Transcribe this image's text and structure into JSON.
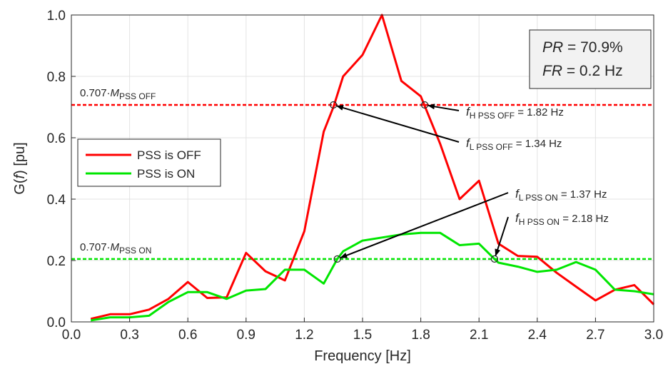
{
  "chart_data": {
    "type": "line",
    "xlabel": "Frequency [Hz]",
    "ylabel": "G(f) [pu]",
    "xlim": [
      0.0,
      3.0
    ],
    "ylim": [
      0.0,
      1.0
    ],
    "xticks": [
      "0.0",
      "0.3",
      "0.6",
      "0.9",
      "1.2",
      "1.5",
      "1.8",
      "2.1",
      "2.4",
      "2.7",
      "3.0"
    ],
    "yticks": [
      "0.0",
      "0.2",
      "0.4",
      "0.6",
      "0.8",
      "1.0"
    ],
    "grid": true,
    "legend": {
      "position": "middle-left",
      "entries": [
        "PSS is OFF",
        "PSS is ON"
      ]
    },
    "series": [
      {
        "name": "PSS is OFF",
        "color": "#ff0000",
        "x": [
          0.1,
          0.2,
          0.3,
          0.4,
          0.5,
          0.6,
          0.7,
          0.8,
          0.9,
          1.0,
          1.1,
          1.2,
          1.3,
          1.35,
          1.4,
          1.5,
          1.6,
          1.7,
          1.8,
          1.9,
          2.0,
          2.1,
          2.2,
          2.3,
          2.4,
          2.5,
          2.6,
          2.7,
          2.8,
          2.9,
          3.0
        ],
        "values": [
          0.01,
          0.025,
          0.025,
          0.04,
          0.075,
          0.13,
          0.078,
          0.08,
          0.225,
          0.165,
          0.135,
          0.295,
          0.62,
          0.7,
          0.8,
          0.87,
          1.0,
          0.785,
          0.735,
          0.58,
          0.4,
          0.46,
          0.255,
          0.215,
          0.212,
          0.16,
          0.115,
          0.07,
          0.105,
          0.12,
          0.057
        ]
      },
      {
        "name": "PSS is ON",
        "color": "#00e600",
        "x": [
          0.1,
          0.2,
          0.3,
          0.4,
          0.5,
          0.6,
          0.7,
          0.8,
          0.9,
          1.0,
          1.1,
          1.2,
          1.3,
          1.37,
          1.4,
          1.5,
          1.6,
          1.7,
          1.8,
          1.9,
          2.0,
          2.1,
          2.18,
          2.2,
          2.3,
          2.4,
          2.5,
          2.6,
          2.7,
          2.8,
          2.9,
          3.0
        ],
        "values": [
          0.005,
          0.015,
          0.015,
          0.02,
          0.065,
          0.097,
          0.097,
          0.075,
          0.102,
          0.107,
          0.17,
          0.17,
          0.125,
          0.205,
          0.23,
          0.265,
          0.275,
          0.285,
          0.29,
          0.29,
          0.25,
          0.255,
          0.205,
          0.193,
          0.18,
          0.163,
          0.17,
          0.195,
          0.17,
          0.105,
          0.1,
          0.09
        ]
      }
    ],
    "reference_lines": [
      {
        "value": 0.707,
        "color": "#ff0000",
        "label_prefix": "0.707·",
        "label_var": "M",
        "label_sub": "PSS OFF"
      },
      {
        "value": 0.205,
        "color": "#00e600",
        "label_prefix": "0.707·",
        "label_var": "M",
        "label_sub": "PSS ON"
      }
    ],
    "markers": [
      {
        "x": 1.35,
        "y": 0.707
      },
      {
        "x": 1.82,
        "y": 0.707
      },
      {
        "x": 1.37,
        "y": 0.205
      },
      {
        "x": 2.18,
        "y": 0.205
      }
    ],
    "annotations": [
      {
        "var": "f",
        "sub": "H PSS OFF",
        "text": " = 1.82 Hz",
        "point_x": 1.82,
        "point_y": 0.707
      },
      {
        "var": "f",
        "sub": "L PSS OFF",
        "text": " = 1.34 Hz",
        "point_x": 1.35,
        "point_y": 0.707
      },
      {
        "var": "f",
        "sub": "L PSS ON",
        "text": " = 1.37 Hz",
        "point_x": 1.37,
        "point_y": 0.205
      },
      {
        "var": "f",
        "sub": "H PSS ON",
        "text": " = 2.18 Hz",
        "point_x": 2.18,
        "point_y": 0.205
      }
    ],
    "info_box": [
      {
        "var": "PR",
        "text": " = 70.9%"
      },
      {
        "var": "FR",
        "text": " = 0.2 Hz"
      }
    ]
  }
}
